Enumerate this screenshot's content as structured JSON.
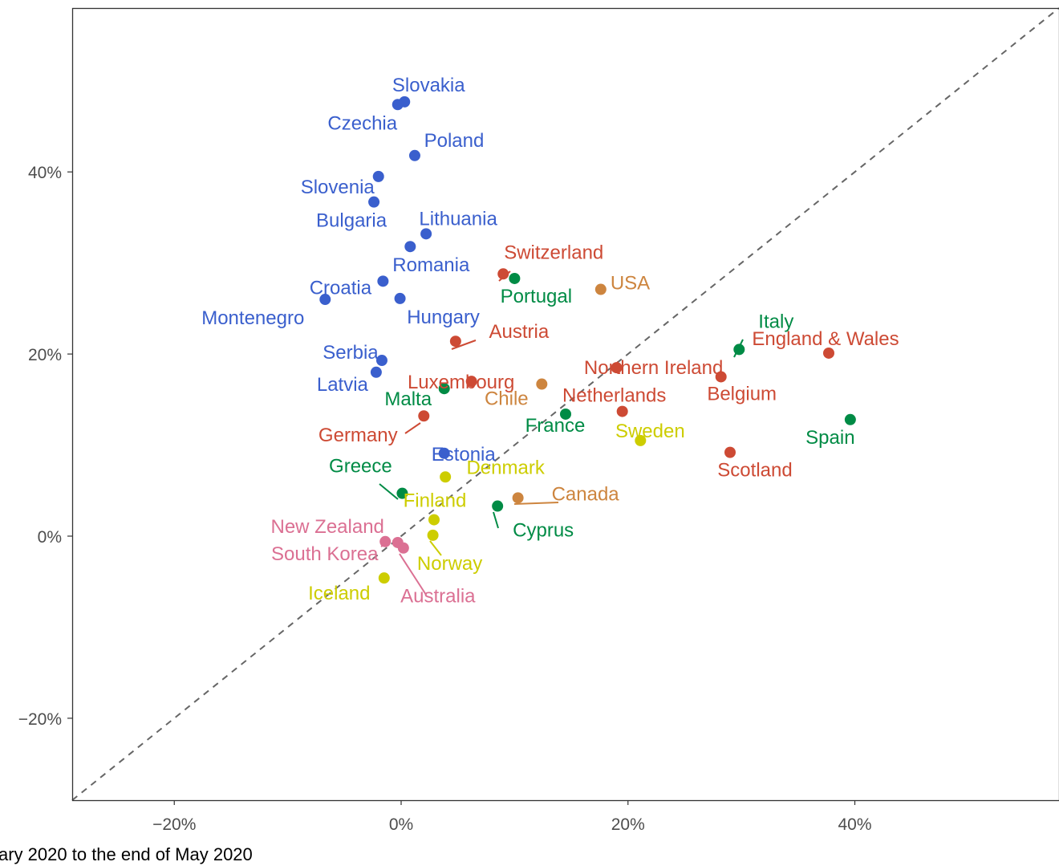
{
  "chart_data": {
    "type": "scatter",
    "title": "",
    "xlabel": "",
    "ylabel": "",
    "caption": "ary 2020 to the end of May 2020",
    "xlim": [
      -0.29,
      0.58
    ],
    "ylim": [
      -0.29,
      0.58
    ],
    "x_ticks": [
      {
        "value": -0.2,
        "label": "−20%"
      },
      {
        "value": 0.0,
        "label": "0%"
      },
      {
        "value": 0.2,
        "label": "20%"
      },
      {
        "value": 0.4,
        "label": "40%"
      }
    ],
    "y_ticks": [
      {
        "value": -0.2,
        "label": "−20%"
      },
      {
        "value": 0.0,
        "label": "0%"
      },
      {
        "value": 0.2,
        "label": "20%"
      },
      {
        "value": 0.4,
        "label": "40%"
      }
    ],
    "reference_line": "y = x",
    "grid": false,
    "colors": {
      "blue": "#3a5fcd",
      "red": "#cd4a34",
      "orange": "#cd853f",
      "green": "#008b45",
      "yellow": "#cdcd00",
      "pink": "#db7093"
    },
    "points": [
      {
        "name": "Slovakia",
        "x": 0.003,
        "y": 0.477,
        "color": "blue"
      },
      {
        "name": "Czechia",
        "x": -0.003,
        "y": 0.474,
        "color": "blue"
      },
      {
        "name": "Poland",
        "x": 0.012,
        "y": 0.418,
        "color": "blue"
      },
      {
        "name": "Slovenia",
        "x": -0.02,
        "y": 0.395,
        "color": "blue"
      },
      {
        "name": "Bulgaria",
        "x": -0.024,
        "y": 0.367,
        "color": "blue"
      },
      {
        "name": "Lithuania",
        "x": 0.022,
        "y": 0.332,
        "color": "blue"
      },
      {
        "name": "Romania",
        "x": 0.008,
        "y": 0.318,
        "color": "blue"
      },
      {
        "name": "Croatia",
        "x": -0.016,
        "y": 0.28,
        "color": "blue"
      },
      {
        "name": "Montenegro",
        "x": -0.067,
        "y": 0.26,
        "color": "blue"
      },
      {
        "name": "Hungary",
        "x": -0.001,
        "y": 0.261,
        "color": "blue"
      },
      {
        "name": "Serbia",
        "x": -0.017,
        "y": 0.193,
        "color": "blue"
      },
      {
        "name": "Latvia",
        "x": -0.022,
        "y": 0.18,
        "color": "blue"
      },
      {
        "name": "Estonia",
        "x": 0.038,
        "y": 0.091,
        "color": "blue"
      },
      {
        "name": "Switzerland",
        "x": 0.09,
        "y": 0.288,
        "color": "red"
      },
      {
        "name": "Austria",
        "x": 0.048,
        "y": 0.214,
        "color": "red"
      },
      {
        "name": "Luxembourg",
        "x": 0.062,
        "y": 0.17,
        "color": "red"
      },
      {
        "name": "Germany",
        "x": 0.02,
        "y": 0.132,
        "color": "red"
      },
      {
        "name": "Northern Ireland",
        "x": 0.19,
        "y": 0.185,
        "color": "red"
      },
      {
        "name": "Netherlands",
        "x": 0.195,
        "y": 0.137,
        "color": "red"
      },
      {
        "name": "Belgium",
        "x": 0.282,
        "y": 0.175,
        "color": "red"
      },
      {
        "name": "England & Wales",
        "x": 0.377,
        "y": 0.201,
        "color": "red"
      },
      {
        "name": "Scotland",
        "x": 0.29,
        "y": 0.092,
        "color": "red"
      },
      {
        "name": "USA",
        "x": 0.176,
        "y": 0.271,
        "color": "orange"
      },
      {
        "name": "Chile",
        "x": 0.124,
        "y": 0.167,
        "color": "orange"
      },
      {
        "name": "Canada",
        "x": 0.103,
        "y": 0.042,
        "color": "orange"
      },
      {
        "name": "Portugal",
        "x": 0.1,
        "y": 0.283,
        "color": "green"
      },
      {
        "name": "Italy",
        "x": 0.298,
        "y": 0.205,
        "color": "green"
      },
      {
        "name": "Malta",
        "x": 0.038,
        "y": 0.162,
        "color": "green"
      },
      {
        "name": "France",
        "x": 0.145,
        "y": 0.134,
        "color": "green"
      },
      {
        "name": "Spain",
        "x": 0.396,
        "y": 0.128,
        "color": "green"
      },
      {
        "name": "Greece",
        "x": 0.001,
        "y": 0.047,
        "color": "green"
      },
      {
        "name": "Cyprus",
        "x": 0.085,
        "y": 0.033,
        "color": "green"
      },
      {
        "name": "Sweden",
        "x": 0.211,
        "y": 0.105,
        "color": "yellow"
      },
      {
        "name": "Denmark",
        "x": 0.039,
        "y": 0.065,
        "color": "yellow"
      },
      {
        "name": "Finland",
        "x": 0.029,
        "y": 0.018,
        "color": "yellow"
      },
      {
        "name": "Norway",
        "x": 0.028,
        "y": 0.001,
        "color": "yellow"
      },
      {
        "name": "Iceland",
        "x": -0.015,
        "y": -0.046,
        "color": "yellow"
      },
      {
        "name": "New Zealand",
        "x": -0.014,
        "y": -0.006,
        "color": "pink"
      },
      {
        "name": "South Korea",
        "x": -0.003,
        "y": -0.007,
        "color": "pink"
      },
      {
        "name": "Australia",
        "x": 0.002,
        "y": -0.013,
        "color": "pink"
      }
    ]
  }
}
